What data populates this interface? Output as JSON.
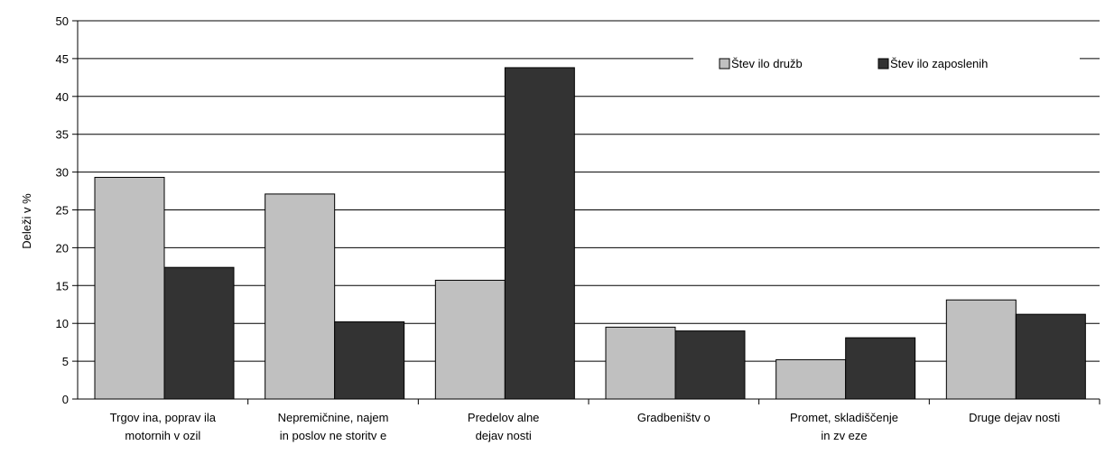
{
  "chart_data": {
    "type": "bar",
    "title": "",
    "xlabel": "",
    "ylabel": "Deleži v %",
    "ylim": [
      0,
      50
    ],
    "yticks": [
      0,
      5,
      10,
      15,
      20,
      25,
      30,
      35,
      40,
      45,
      50
    ],
    "grid": true,
    "legend_position": "top-right",
    "categories": [
      [
        "Trgov ina, poprav ila",
        "motornih v ozil"
      ],
      [
        "Nepremičnine, najem",
        "in poslov ne storitv e"
      ],
      [
        "Predelov alne",
        "dejav nosti"
      ],
      [
        "Gradbeništv o"
      ],
      [
        "Promet, skladiščenje",
        "in zv eze"
      ],
      [
        "Druge dejav nosti"
      ]
    ],
    "series": [
      {
        "name": "Štev ilo družb",
        "color": "#c0c0c0",
        "values": [
          29.3,
          27.1,
          15.7,
          9.5,
          5.2,
          13.1
        ]
      },
      {
        "name": "Štev ilo zaposlenih",
        "color": "#333333",
        "values": [
          17.4,
          10.2,
          43.8,
          9.0,
          8.1,
          11.2
        ]
      }
    ]
  }
}
